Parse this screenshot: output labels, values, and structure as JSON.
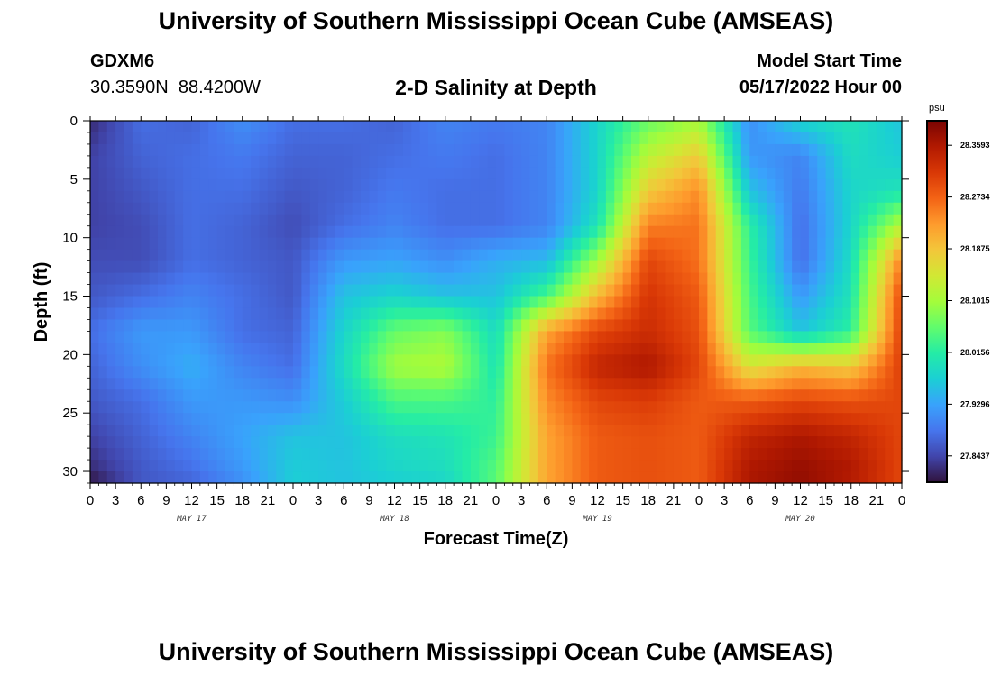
{
  "header": {
    "title": "University of Southern Mississippi Ocean Cube (AMSEAS)",
    "station_id": "GDXM6",
    "coordinates": "30.3590N  88.4200W",
    "subtitle": "2-D Salinity at Depth",
    "model_start_label": "Model Start Time",
    "model_start_value": "05/17/2022 Hour 00"
  },
  "footer": {
    "title": "University of Southern Mississippi Ocean Cube (AMSEAS)"
  },
  "chart_data": {
    "type": "heatmap",
    "title": "2-D Salinity at Depth",
    "xlabel": "Forecast Time(Z)",
    "ylabel": "Depth (ft)",
    "x_unit": "hours since model start",
    "x_range": [
      0,
      96
    ],
    "y_range": [
      0,
      31
    ],
    "y_inverted": true,
    "x_tick_labels": [
      "0",
      "3",
      "6",
      "9",
      "12",
      "15",
      "18",
      "21",
      "0",
      "3",
      "6",
      "9",
      "12",
      "15",
      "18",
      "21",
      "0",
      "3",
      "6",
      "9",
      "12",
      "15",
      "18",
      "21",
      "0",
      "3",
      "6",
      "9",
      "12",
      "15",
      "18",
      "21",
      "0"
    ],
    "day_labels": [
      {
        "label": "MAY 17",
        "hour": 12
      },
      {
        "label": "MAY 18",
        "hour": 36
      },
      {
        "label": "MAY 19",
        "hour": 60
      },
      {
        "label": "MAY 20",
        "hour": 84
      }
    ],
    "y_ticks": [
      0,
      5,
      10,
      15,
      20,
      25,
      30
    ],
    "colorbar": {
      "units": "psu",
      "range": [
        27.8,
        28.4
      ],
      "tick_labels": [
        "28.3593",
        "28.2734",
        "28.1875",
        "28.1015",
        "28.0156",
        "27.9296",
        "27.8437"
      ],
      "tick_values": [
        28.3593,
        28.2734,
        28.1875,
        28.1015,
        28.0156,
        27.9296,
        27.8437
      ],
      "colors": [
        "#30123b",
        "#4145ab",
        "#4675ed",
        "#39a2fc",
        "#1bcfd4",
        "#24eca6",
        "#61fc6c",
        "#a4fc3b",
        "#d1e834",
        "#f3c63a",
        "#fe9b2d",
        "#f36315",
        "#d93806",
        "#b11901",
        "#7a0402"
      ]
    },
    "depths": [
      0,
      3,
      6,
      9,
      12,
      15,
      18,
      21,
      24,
      27,
      30,
      31
    ],
    "times": [
      0,
      6,
      12,
      18,
      24,
      30,
      36,
      42,
      48,
      54,
      60,
      66,
      72,
      78,
      84,
      90,
      96
    ],
    "values": [
      [
        27.82,
        27.88,
        27.87,
        27.91,
        27.88,
        27.88,
        27.87,
        27.9,
        27.89,
        27.9,
        27.98,
        28.06,
        28.1,
        27.91,
        27.98,
        28.0,
        27.96
      ],
      [
        27.84,
        27.87,
        27.88,
        27.89,
        27.87,
        27.87,
        27.88,
        27.89,
        27.88,
        27.9,
        27.98,
        28.12,
        28.18,
        27.92,
        27.9,
        27.99,
        27.97
      ],
      [
        27.84,
        27.86,
        27.88,
        27.88,
        27.86,
        27.87,
        27.89,
        27.88,
        27.88,
        27.9,
        27.98,
        28.18,
        28.24,
        27.96,
        27.89,
        27.98,
        28.0
      ],
      [
        27.84,
        27.85,
        27.88,
        27.87,
        27.85,
        27.88,
        27.9,
        27.88,
        27.88,
        27.9,
        28.0,
        28.25,
        28.26,
        28.02,
        27.88,
        27.98,
        28.12
      ],
      [
        27.85,
        27.85,
        27.88,
        27.87,
        27.86,
        27.92,
        27.93,
        27.91,
        27.94,
        27.95,
        28.1,
        28.3,
        28.26,
        28.03,
        27.88,
        27.99,
        28.25
      ],
      [
        27.86,
        27.88,
        27.9,
        27.88,
        27.86,
        27.96,
        27.98,
        27.96,
        27.96,
        28.04,
        28.2,
        28.32,
        28.28,
        28.04,
        27.92,
        28.0,
        28.3
      ],
      [
        27.88,
        27.92,
        27.92,
        27.88,
        27.87,
        27.98,
        28.06,
        28.08,
        27.99,
        28.22,
        28.3,
        28.33,
        28.29,
        28.05,
        27.96,
        28.02,
        28.31
      ],
      [
        27.87,
        27.91,
        27.94,
        27.9,
        27.88,
        27.99,
        28.1,
        28.11,
        28.0,
        28.26,
        28.34,
        28.36,
        28.3,
        28.15,
        28.2,
        28.18,
        28.31
      ],
      [
        27.86,
        27.88,
        27.92,
        27.92,
        27.91,
        27.97,
        28.04,
        28.04,
        28.02,
        28.24,
        28.3,
        28.31,
        28.28,
        28.28,
        28.3,
        28.29,
        28.3
      ],
      [
        27.84,
        27.87,
        27.9,
        27.93,
        27.96,
        27.96,
        27.99,
        28.0,
        28.03,
        28.22,
        28.28,
        28.29,
        28.28,
        28.34,
        28.36,
        28.34,
        28.3
      ],
      [
        27.82,
        27.86,
        27.88,
        27.92,
        27.97,
        27.96,
        27.98,
        27.99,
        28.05,
        28.22,
        28.28,
        28.29,
        28.28,
        28.36,
        28.38,
        28.36,
        28.3
      ],
      [
        27.8,
        27.86,
        27.87,
        27.91,
        27.97,
        27.96,
        27.97,
        27.98,
        28.05,
        28.22,
        28.28,
        28.29,
        28.28,
        28.36,
        28.38,
        28.35,
        28.3
      ]
    ]
  }
}
